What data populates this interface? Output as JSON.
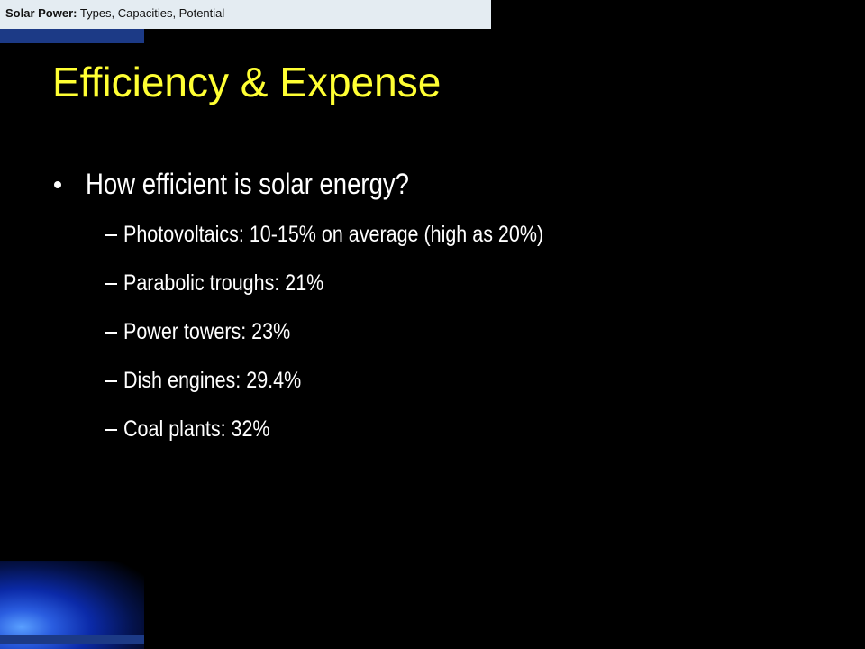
{
  "header": {
    "label_bold": "Solar Power:",
    "label_rest": "Types, Capacities, Potential"
  },
  "title": "Efficiency & Expense",
  "bullets": [
    {
      "text": "How efficient is solar energy?",
      "subitems": [
        "Photovoltaics: 10-15% on average (high as 20%)",
        "Parabolic troughs: 21%",
        "Power towers: 23%",
        "Dish engines: 29.4%",
        "Coal plants: 32%"
      ]
    }
  ]
}
